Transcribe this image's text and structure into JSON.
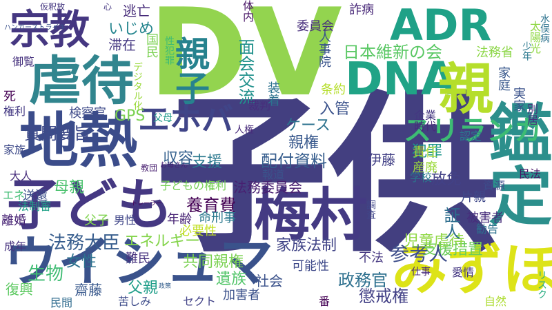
{
  "word_cloud": {
    "words": [
      {
        "text": "子供",
        "color": "#433f80"
      },
      {
        "text": "DV",
        "color": "#93d44f"
      },
      {
        "text": "地熱",
        "color": "#3b4c8a"
      },
      {
        "text": "虐待",
        "color": "#31858e"
      },
      {
        "text": "梅村",
        "color": "#443a83"
      },
      {
        "text": "鑑定",
        "color": "#2c8f8c"
      },
      {
        "text": "子ども",
        "color": "#453882"
      },
      {
        "text": "ウイシュマ",
        "color": "#3a528b"
      },
      {
        "text": "DNA",
        "color": "#20a386"
      },
      {
        "text": "親",
        "color": "#b5de2b"
      },
      {
        "text": "みずほ",
        "color": "#dde318"
      },
      {
        "text": "宗教",
        "color": "#453781"
      },
      {
        "text": "ADR",
        "color": "#1fa187"
      },
      {
        "text": "親子",
        "color": "#26828e"
      },
      {
        "text": "エホバ",
        "color": "#404588"
      },
      {
        "text": "スリランカ",
        "color": "#3dbc74"
      },
      {
        "text": "日本維新の会",
        "color": "#5ac864"
      },
      {
        "text": "支援措置",
        "color": "#6ccd5a"
      },
      {
        "text": "参考人",
        "color": "#3d4d8a"
      },
      {
        "text": "法務大臣",
        "color": "#365c8d"
      },
      {
        "text": "共同親権",
        "color": "#7ad151"
      },
      {
        "text": "面会交流",
        "color": "#21918c"
      },
      {
        "text": "家族法制",
        "color": "#414487"
      },
      {
        "text": "質問要旨",
        "color": "#3e4a89"
      },
      {
        "text": "配付資料",
        "color": "#365d8d"
      },
      {
        "text": "養育費",
        "color": "#440154"
      },
      {
        "text": "法務委員会",
        "color": "#481f70"
      },
      {
        "text": "政務官",
        "color": "#2d708e"
      },
      {
        "text": "懲戒権",
        "color": "#424086"
      },
      {
        "text": "いじめ",
        "color": "#25858e"
      },
      {
        "text": "児童虐待",
        "color": "#8fd744"
      },
      {
        "text": "父親",
        "color": "#1f9e89"
      },
      {
        "text": "女性",
        "color": "#2d718e"
      },
      {
        "text": "生物",
        "color": "#3fbc73"
      },
      {
        "text": "エネルギー",
        "color": "#84d44b"
      },
      {
        "text": "母親",
        "color": "#4ac16d"
      },
      {
        "text": "GPS",
        "color": "#7ad151"
      },
      {
        "text": "証人",
        "color": "#2e6e8e"
      },
      {
        "text": "放免",
        "color": "#424186"
      },
      {
        "text": "遺族",
        "color": "#52c569"
      },
      {
        "text": "社会",
        "color": "#3b528b"
      },
      {
        "text": "ケース",
        "color": "#2c728e"
      },
      {
        "text": "親権",
        "color": "#38588c"
      },
      {
        "text": "犯罪",
        "color": "#1f968b"
      },
      {
        "text": "収容",
        "color": "#34608d"
      },
      {
        "text": "支援",
        "color": "#2a788e"
      },
      {
        "text": "入管",
        "color": "#3b528b"
      },
      {
        "text": "伊藤",
        "color": "#424086"
      },
      {
        "text": "責任",
        "color": "#addc30"
      },
      {
        "text": "産廃",
        "color": "#9bd93c"
      },
      {
        "text": "片親",
        "color": "#3f4889"
      },
      {
        "text": "被害者",
        "color": "#472d7b"
      },
      {
        "text": "父子",
        "color": "#7fd34e"
      },
      {
        "text": "命刑事",
        "color": "#2a788e"
      },
      {
        "text": "年齢",
        "color": "#482475"
      },
      {
        "text": "必要性",
        "color": "#c2df23"
      },
      {
        "text": "男性",
        "color": "#404688"
      },
      {
        "text": "可能性",
        "color": "#3e4989"
      },
      {
        "text": "加害者",
        "color": "#3b518b"
      },
      {
        "text": "不法",
        "color": "#453781"
      },
      {
        "text": "自然",
        "color": "#addc30"
      },
      {
        "text": "セクト",
        "color": "#414287"
      },
      {
        "text": "齋藤",
        "color": "#38588c"
      },
      {
        "text": "苦しみ",
        "color": "#3e4c8a"
      },
      {
        "text": "難民",
        "color": "#46327e"
      },
      {
        "text": "民間",
        "color": "#2f6b8e"
      },
      {
        "text": "復興",
        "color": "#5ec962"
      },
      {
        "text": "離婚",
        "color": "#482475"
      },
      {
        "text": "送還",
        "color": "#3c4f8a"
      },
      {
        "text": "大人",
        "color": "#472d7b"
      },
      {
        "text": "家族",
        "color": "#3e4a89"
      },
      {
        "text": "権利",
        "color": "#443983"
      },
      {
        "text": "死",
        "color": "#440154"
      },
      {
        "text": "御覧",
        "color": "#46327e"
      },
      {
        "text": "国民",
        "color": "#7ad151"
      },
      {
        "text": "検察官",
        "color": "#3e4a89"
      },
      {
        "text": "逃亡",
        "color": "#472c7a"
      },
      {
        "text": "滞在",
        "color": "#453882"
      },
      {
        "text": "詐病",
        "color": "#482878"
      },
      {
        "text": "委員会",
        "color": "#472e7c"
      },
      {
        "text": "人事院",
        "color": "#3a548c"
      },
      {
        "text": "法務省",
        "color": "#8bd646"
      },
      {
        "text": "家庭",
        "color": "#38588c"
      },
      {
        "text": "実家",
        "color": "#3b528b"
      },
      {
        "text": "条約",
        "color": "#b5de2b"
      },
      {
        "text": "裁判",
        "color": "#472e7c"
      },
      {
        "text": "装着",
        "color": "#2c728e"
      },
      {
        "text": "時代",
        "color": "#472c7a"
      },
      {
        "text": "企業",
        "color": "#453781"
      },
      {
        "text": "認定",
        "color": "#2a788e"
      },
      {
        "text": "別居",
        "color": "#46327e"
      },
      {
        "text": "民法",
        "color": "#471365"
      },
      {
        "text": "人権",
        "color": "#472a7a"
      },
      {
        "text": "父母",
        "color": "#1f9a8a"
      },
      {
        "text": "報道",
        "color": "#3b528b"
      },
      {
        "text": "学校",
        "color": "#2a788e"
      },
      {
        "text": "資源",
        "color": "#3e4c8a"
      },
      {
        "text": "勧告",
        "color": "#2c728e"
      },
      {
        "text": "子どもの権利",
        "color": "#75d054"
      },
      {
        "text": "愛情",
        "color": "#453781"
      },
      {
        "text": "仕事",
        "color": "#472a7a"
      },
      {
        "text": "リスク",
        "color": "#27ad81"
      },
      {
        "text": "番",
        "color": "#440154"
      },
      {
        "text": "成年",
        "color": "#46327e"
      },
      {
        "text": "エネ",
        "color": "#3fbc73"
      },
      {
        "text": "法制審",
        "color": "#1fa187"
      },
      {
        "text": "体内",
        "color": "#471365"
      },
      {
        "text": "少年",
        "color": "#2a788e"
      },
      {
        "text": "太陽光",
        "color": "#8fd744"
      },
      {
        "text": "水俣病",
        "color": "#2c728e"
      },
      {
        "text": "デジタル化",
        "color": "#9bd93c"
      },
      {
        "text": "性犯罪",
        "color": "#3dbc74"
      },
      {
        "text": "仮釈放",
        "color": "#453781"
      },
      {
        "text": "ハンガーストライキ",
        "color": "#3b528b"
      },
      {
        "text": "心",
        "color": "#453781"
      },
      {
        "text": "調査",
        "color": "#404688"
      },
      {
        "text": "教団",
        "color": "#481f70"
      },
      {
        "text": "お母さん",
        "color": "#482475"
      },
      {
        "text": "トレーラー",
        "color": "#440154"
      },
      {
        "text": "政策",
        "color": "#355f8d"
      }
    ]
  }
}
